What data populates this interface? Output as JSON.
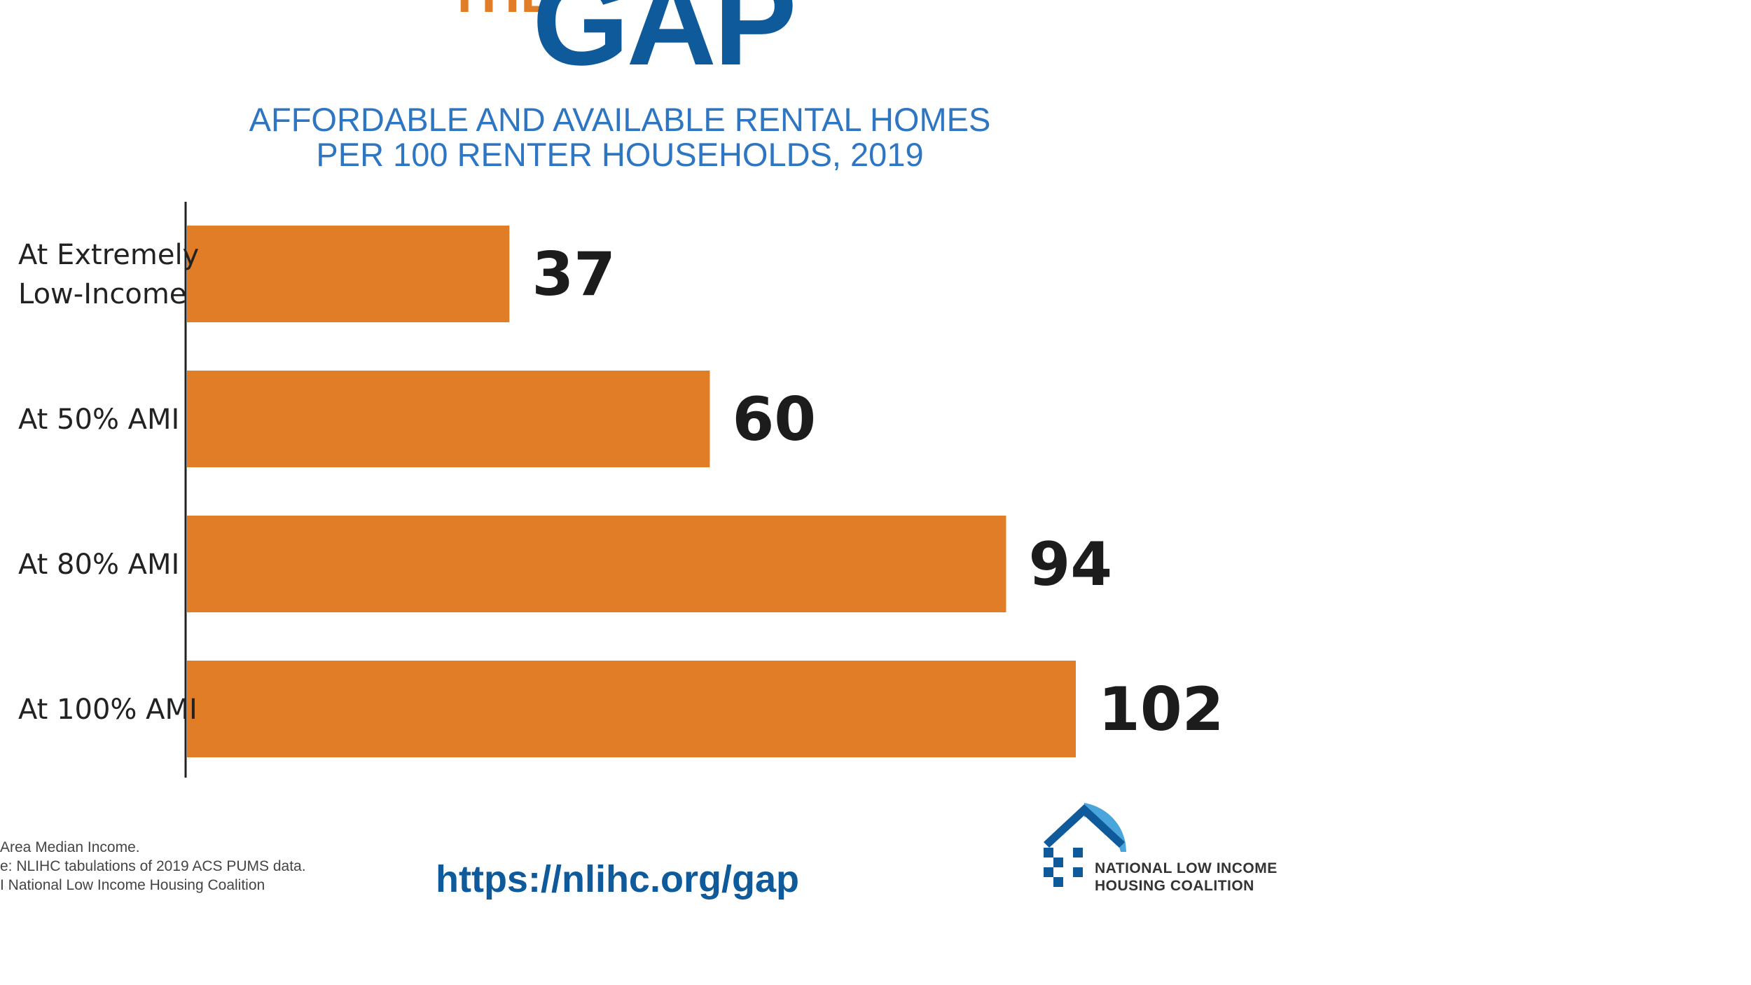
{
  "header": {
    "kicker": "THE",
    "brand": "GAP",
    "subtitle_line1": "AFFORDABLE AND AVAILABLE RENTAL HOMES",
    "subtitle_line2": "PER 100 RENTER HOUSEHOLDS, 2019"
  },
  "chart_data": {
    "type": "bar",
    "orientation": "horizontal",
    "title": "AFFORDABLE AND AVAILABLE RENTAL HOMES PER 100 RENTER HOUSEHOLDS, 2019",
    "categories": [
      [
        "At Extremely",
        "Low-Income"
      ],
      [
        "At 50% AMI"
      ],
      [
        "At 80% AMI"
      ],
      [
        "At 100% AMI"
      ]
    ],
    "values": [
      37,
      60,
      94,
      102
    ],
    "value_labels": [
      "37",
      "60",
      "94",
      "102"
    ],
    "xlim": [
      0,
      102
    ],
    "xlabel": "",
    "ylabel": "",
    "grid": false,
    "bar_color": "#e07d26"
  },
  "footer": {
    "note1": "Area Median Income.",
    "note2": "e: NLIHC tabulations of 2019 ACS PUMS data.",
    "note3": "I National Low Income Housing Coalition",
    "url": "https://nlihc.org/gap"
  },
  "logo": {
    "line1": "NATIONAL LOW INCOME",
    "line2": "HOUSING COALITION",
    "icon": "house-roof-logo-icon"
  },
  "colors": {
    "brand_blue": "#0f5a9b",
    "subtitle_blue": "#2f76c2",
    "accent_orange": "#e07d26",
    "logo_light_blue": "#4aa5dd"
  }
}
